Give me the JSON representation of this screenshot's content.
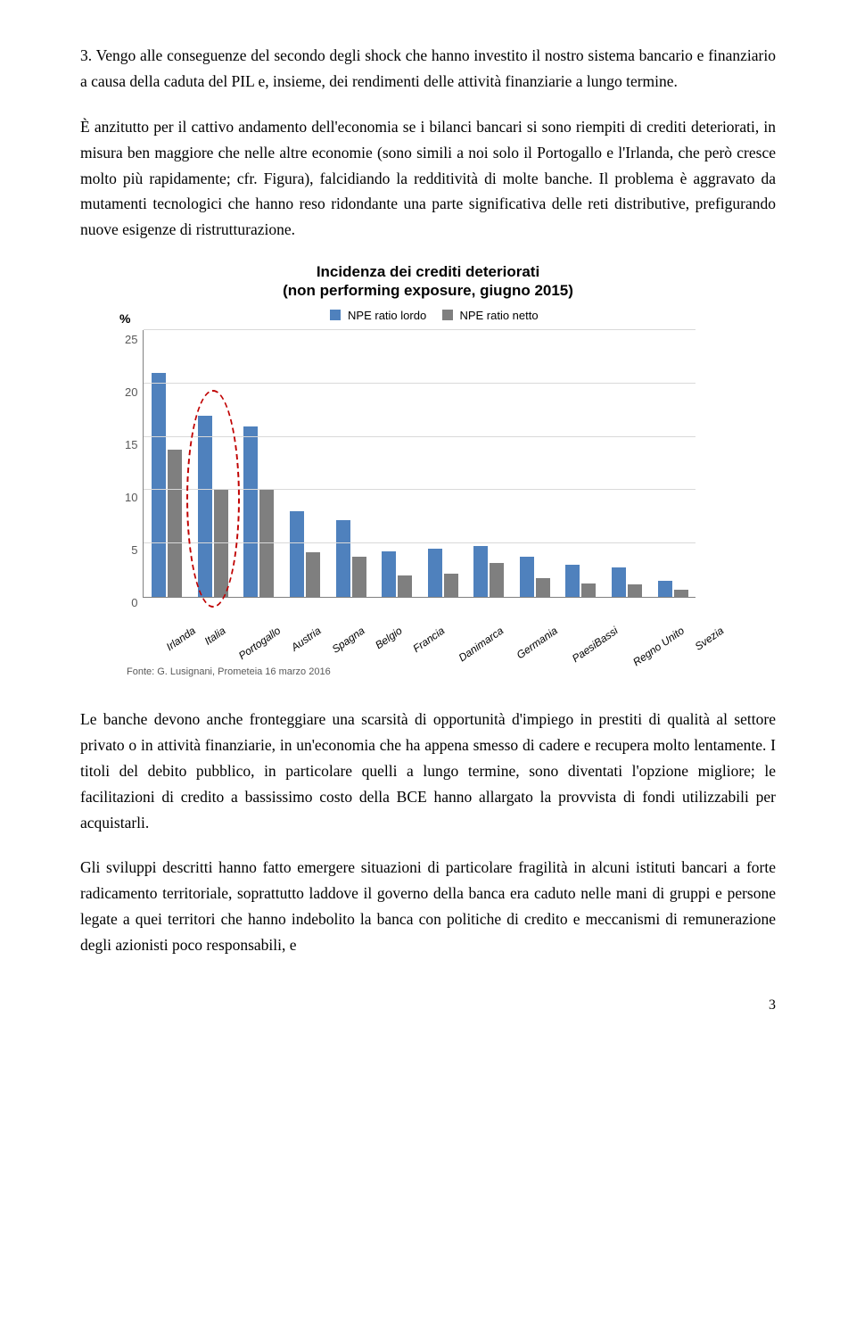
{
  "paragraphs": {
    "p1": "3. Vengo alle conseguenze del secondo degli shock che hanno investito il nostro sistema bancario e finanziario a causa della caduta del PIL e, insieme, dei rendimenti delle attività finanziarie a lungo termine.",
    "p2": "È anzitutto per il cattivo andamento dell'economia se i bilanci bancari si sono riempiti di crediti deteriorati, in misura ben maggiore che nelle altre economie (sono simili a noi solo il Portogallo e l'Irlanda, che però cresce molto più rapidamente; cfr. Figura), falcidiando la redditività di molte banche. Il problema è aggravato da mutamenti tecnologici che hanno reso ridondante una parte significativa delle reti distributive, prefigurando nuove esigenze di ristrutturazione.",
    "p3": "Le banche devono anche fronteggiare una scarsità di opportunità d'impiego in prestiti di qualità al settore privato o in attività finanziarie, in un'economia che ha appena smesso di cadere e recupera molto lentamente. I titoli del debito pubblico, in particolare quelli a lungo termine, sono diventati l'opzione migliore; le facilitazioni di credito a bassissimo costo della BCE hanno allargato la provvista di fondi utilizzabili per acquistarli.",
    "p4": "Gli sviluppi descritti hanno fatto emergere situazioni di particolare fragilità in alcuni istituti bancari a forte radicamento territoriale, soprattutto laddove il governo della banca era caduto nelle mani di gruppi e persone legate a quei territori che hanno indebolito la banca con politiche di credito e meccanismi di remunerazione degli azionisti poco responsabili, e"
  },
  "chart": {
    "title_l1": "Incidenza dei crediti deteriorati",
    "title_l2": "(non performing exposure, giugno 2015)",
    "y_unit": "%",
    "legend": {
      "a": "NPE ratio lordo",
      "b": "NPE ratio netto"
    },
    "colors": {
      "lordo": "#4f81bd",
      "netto": "#7f7f7f",
      "grid": "#d9d9d9",
      "highlight": "#c00000"
    },
    "ylim": 25,
    "yticks": [
      "25",
      "20",
      "15",
      "10",
      "5",
      "0"
    ],
    "categories": [
      "Irlanda",
      "Italia",
      "Portogallo",
      "Austria",
      "Spagna",
      "Belgio",
      "Francia",
      "Danimarca",
      "Germania",
      "PaesiBassi",
      "Regno Unito",
      "Svezia"
    ],
    "lordo": [
      21.0,
      17.0,
      16.0,
      8.0,
      7.2,
      4.3,
      4.5,
      4.8,
      3.8,
      3.0,
      2.8,
      1.5
    ],
    "netto": [
      13.8,
      10.0,
      10.0,
      4.2,
      3.8,
      2.0,
      2.2,
      3.2,
      1.8,
      1.3,
      1.2,
      0.7
    ],
    "highlight_index": 1,
    "source": "Fonte: G. Lusignani, Prometeia 16 marzo 2016"
  },
  "page_number": "3"
}
